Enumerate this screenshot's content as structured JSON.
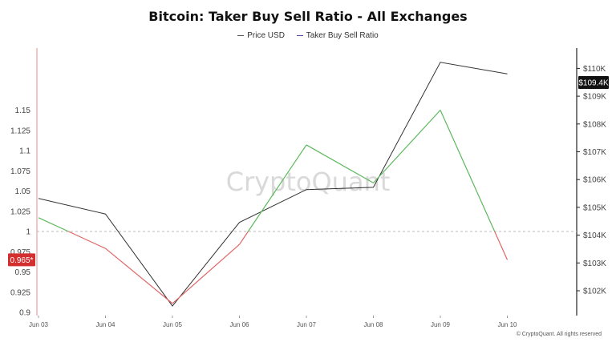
{
  "title": "Bitcoin: Taker Buy Sell Ratio - All Exchanges",
  "legend": [
    {
      "name": "Price USD",
      "color": "#555555"
    },
    {
      "name": "Taker Buy Sell Ratio",
      "color": "#4f46a8"
    }
  ],
  "watermark": "CryptoQuant",
  "footer": "© CryptoQuant. All rights reserved",
  "colors": {
    "ratio_up": "#5cb85c",
    "ratio_down": "#e06666",
    "price_line": "#333333",
    "current_ratio_badge": "#d32f2f",
    "current_price_badge": "#111111",
    "axis": "#222222",
    "baseline": "#bbbbbb"
  },
  "chart_data": {
    "type": "line",
    "title": "Bitcoin: Taker Buy Sell Ratio - All Exchanges",
    "x": [
      "Jun 03",
      "Jun 04",
      "Jun 05",
      "Jun 06",
      "Jun 07",
      "Jun 08",
      "Jun 09",
      "Jun 10"
    ],
    "series": [
      {
        "name": "Taker Buy Sell Ratio",
        "axis": "left",
        "x": [
          "Jun 03",
          "Jun 04",
          "Jun 05",
          "Jun 06",
          "Jun 07",
          "Jun 08",
          "Jun 09",
          "Jun 10"
        ],
        "values": [
          1.017,
          0.979,
          0.911,
          0.984,
          1.107,
          1.06,
          1.15,
          0.965
        ]
      },
      {
        "name": "Price USD",
        "axis": "right",
        "x": [
          "Jun 03",
          "Jun 04",
          "Jun 05",
          "Jun 06",
          "Jun 07",
          "Jun 08",
          "Jun 09"
        ],
        "values": [
          105320,
          104760,
          101450,
          104460,
          105640,
          105720,
          110220
        ],
        "extra_point": {
          "x_index": 7,
          "value": 109400
        }
      }
    ],
    "left_axis": {
      "ylim": [
        0.9,
        1.16
      ],
      "ticks": [
        0.9,
        0.925,
        0.95,
        0.975,
        1,
        1.025,
        1.05,
        1.075,
        1.1,
        1.125,
        1.15
      ],
      "tick_labels": [
        "0.9",
        "0.925",
        "0.95",
        "0.975",
        "1",
        "1.025",
        "1.05",
        "1.075",
        "1.1",
        "1.125",
        "1.15"
      ]
    },
    "right_axis": {
      "ylim": [
        101200,
        110550
      ],
      "ticks": [
        102000,
        103000,
        104000,
        105000,
        106000,
        107000,
        108000,
        109000,
        110000
      ],
      "tick_labels": [
        "$102K",
        "$103K",
        "$104K",
        "$105K",
        "$106K",
        "$107K",
        "$108K",
        "$109K",
        "$110K"
      ]
    },
    "baseline": 1,
    "current_ratio_label": "0.965*",
    "current_price_label": "$109.4K",
    "grid": false,
    "legend_position": "top-center"
  }
}
